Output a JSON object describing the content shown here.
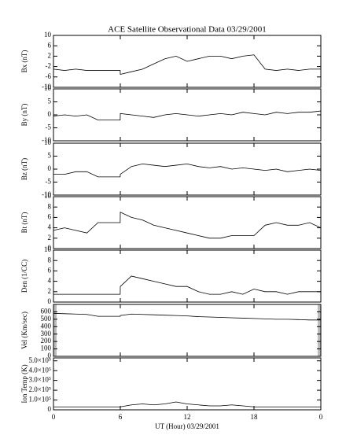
{
  "chart_data": [
    {
      "type": "line",
      "title": "ACE Satellite Observational Data   03/29/2001",
      "ylabel": "Bx (nT)",
      "x": [
        0,
        1,
        2,
        3,
        4,
        5,
        5.99,
        6,
        7,
        8,
        9,
        10,
        11,
        12,
        13,
        14,
        15,
        16,
        17,
        18,
        19,
        20,
        21,
        22,
        23,
        24
      ],
      "values": [
        -3,
        -3.5,
        -3,
        -3.5,
        -3.5,
        -3.5,
        -3.5,
        -5,
        -4,
        -3,
        -1,
        1,
        2,
        0,
        1,
        2,
        2,
        1,
        2,
        2.5,
        -3,
        -3.5,
        -3,
        -3.5,
        -3,
        -3
      ],
      "xlim": [
        0,
        24
      ],
      "xticks": [
        0,
        6,
        12,
        18,
        {
          "value": 24,
          "label": "0"
        }
      ],
      "ylim": [
        -10,
        10
      ],
      "yticks": [
        -10,
        -6,
        -2,
        2,
        6,
        10
      ],
      "color": "#000000"
    },
    {
      "type": "line",
      "ylabel": "By (nT)",
      "x": [
        0,
        1,
        2,
        3,
        4,
        5,
        5.99,
        6,
        7,
        8,
        9,
        10,
        11,
        12,
        13,
        14,
        15,
        16,
        17,
        18,
        19,
        20,
        21,
        22,
        23,
        24
      ],
      "values": [
        -0.5,
        0,
        -0.5,
        0,
        -2,
        -2,
        -2,
        0.5,
        0,
        -0.5,
        -1,
        0,
        0.5,
        0,
        -0.5,
        0,
        0.5,
        0,
        1,
        0.5,
        0,
        1,
        0.5,
        1,
        1,
        1.5
      ],
      "xlim": [
        0,
        24
      ],
      "xticks": [
        0,
        6,
        12,
        18,
        {
          "value": 24,
          "label": "0"
        }
      ],
      "ylim": [
        -10,
        10
      ],
      "yticks": [
        -10,
        -5,
        0,
        5,
        10
      ],
      "color": "#000000"
    },
    {
      "type": "line",
      "ylabel": "Bz (nT)",
      "x": [
        0,
        1,
        2,
        3,
        4,
        5,
        5.99,
        6,
        7,
        8,
        9,
        10,
        11,
        12,
        13,
        14,
        15,
        16,
        17,
        18,
        19,
        20,
        21,
        22,
        23,
        24
      ],
      "values": [
        -2,
        -2,
        -1,
        -1,
        -3,
        -3,
        -3,
        -2,
        1,
        2,
        1.5,
        1,
        1.5,
        2,
        1,
        0.5,
        1,
        0,
        0.5,
        0,
        -0.5,
        0,
        -1,
        -0.5,
        0,
        -0.5
      ],
      "xlim": [
        0,
        24
      ],
      "xticks": [
        0,
        6,
        12,
        18,
        {
          "value": 24,
          "label": "0"
        }
      ],
      "ylim": [
        -10,
        10
      ],
      "yticks": [
        -10,
        -5,
        0,
        5,
        10
      ],
      "color": "#000000"
    },
    {
      "type": "line",
      "ylabel": "Bt (nT)",
      "x": [
        0,
        1,
        2,
        3,
        4,
        5,
        5.99,
        6,
        7,
        8,
        9,
        10,
        11,
        12,
        13,
        14,
        15,
        16,
        17,
        18,
        19,
        20,
        21,
        22,
        23,
        24
      ],
      "values": [
        3.5,
        4,
        3.5,
        3,
        5,
        5,
        5,
        7,
        6,
        5.5,
        4.5,
        4,
        3.5,
        3,
        2.5,
        2,
        2,
        2.5,
        2.5,
        2.5,
        4.5,
        5,
        4.5,
        4.5,
        5,
        4
      ],
      "xlim": [
        0,
        24
      ],
      "xticks": [
        0,
        6,
        12,
        18,
        {
          "value": 24,
          "label": "0"
        }
      ],
      "ylim": [
        0,
        10
      ],
      "yticks": [
        0,
        2,
        4,
        6,
        8,
        10
      ],
      "color": "#000000"
    },
    {
      "type": "line",
      "ylabel": "Den (1/CC)",
      "x": [
        0,
        1,
        2,
        3,
        4,
        5,
        5.99,
        6,
        7,
        8,
        9,
        10,
        11,
        12,
        13,
        14,
        15,
        16,
        17,
        18,
        19,
        20,
        21,
        22,
        23,
        24
      ],
      "values": [
        1.5,
        1.5,
        1.5,
        1.5,
        1.5,
        1.5,
        1.5,
        3,
        5,
        4.5,
        4,
        3.5,
        3,
        3,
        2,
        1.5,
        1.5,
        2,
        1.5,
        2.5,
        2,
        2,
        1.5,
        2,
        2,
        2
      ],
      "xlim": [
        0,
        24
      ],
      "xticks": [
        0,
        6,
        12,
        18,
        {
          "value": 24,
          "label": "0"
        }
      ],
      "ylim": [
        0,
        10
      ],
      "yticks": [
        0,
        2,
        4,
        6,
        8,
        10
      ],
      "color": "#000000"
    },
    {
      "type": "line",
      "ylabel": "Vel (Km/sec)",
      "x": [
        0,
        1,
        2,
        3,
        4,
        5,
        5.99,
        6,
        7,
        8,
        9,
        10,
        11,
        12,
        13,
        14,
        15,
        16,
        17,
        18,
        19,
        20,
        21,
        22,
        23,
        24
      ],
      "values": [
        580,
        575,
        570,
        565,
        540,
        540,
        540,
        550,
        570,
        565,
        560,
        555,
        550,
        545,
        535,
        530,
        525,
        520,
        515,
        510,
        505,
        500,
        500,
        495,
        490,
        490
      ],
      "xlim": [
        0,
        24
      ],
      "xticks": [
        0,
        6,
        12,
        18,
        {
          "value": 24,
          "label": "0"
        }
      ],
      "ylim": [
        0,
        700
      ],
      "yticks": [
        0,
        100,
        200,
        300,
        400,
        500,
        600
      ],
      "color": "#000000"
    },
    {
      "type": "line",
      "ylabel": "Ion Temp (K)",
      "xlabel": "UT (Hour)  03/29/2001",
      "x": [
        0,
        1,
        2,
        3,
        4,
        5,
        5.99,
        6,
        7,
        8,
        9,
        10,
        11,
        12,
        13,
        14,
        15,
        16,
        17,
        18,
        19,
        20,
        21,
        22,
        23,
        24
      ],
      "values": [
        30000,
        30000,
        30000,
        30000,
        30000,
        30000,
        30000,
        30000,
        50000,
        60000,
        50000,
        60000,
        80000,
        60000,
        50000,
        40000,
        40000,
        50000,
        40000,
        30000,
        30000,
        30000,
        30000,
        30000,
        30000,
        30000
      ],
      "xlim": [
        0,
        24
      ],
      "xticks": [
        0,
        6,
        12,
        18,
        {
          "value": 24,
          "label": "0"
        }
      ],
      "ylim": [
        0,
        530000
      ],
      "yticks": [
        0,
        {
          "value": 100000,
          "label": "1.0×10⁵"
        },
        {
          "value": 200000,
          "label": "2.0×10⁵"
        },
        {
          "value": 300000,
          "label": "3.0×10⁵"
        },
        {
          "value": 400000,
          "label": "4.0×10⁵"
        },
        {
          "value": 500000,
          "label": "5.0×10⁵"
        }
      ],
      "color": "#000000"
    }
  ]
}
